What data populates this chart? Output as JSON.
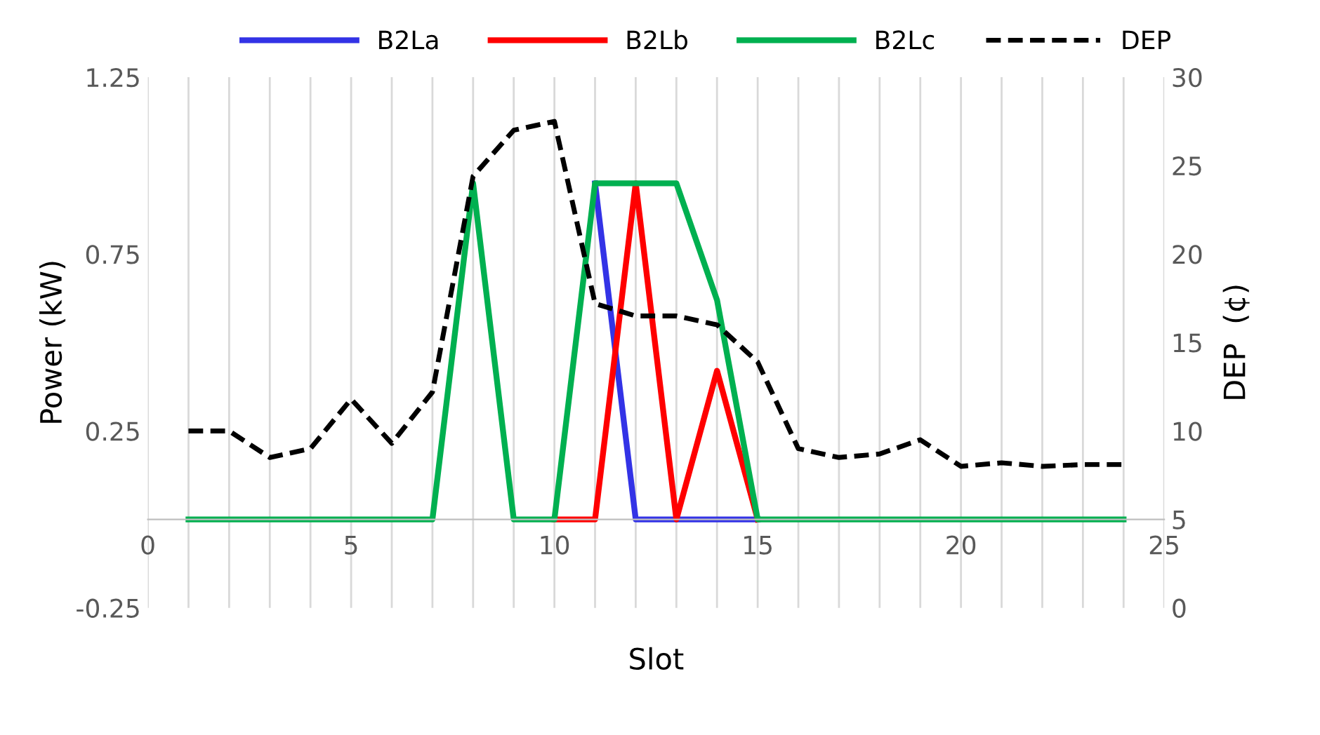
{
  "chart_data": {
    "type": "line",
    "xlabel": "Slot",
    "ylabel": "Power (kW)",
    "y2label": "DEP  (¢)",
    "x": [
      1,
      2,
      3,
      4,
      5,
      6,
      7,
      8,
      9,
      10,
      11,
      12,
      13,
      14,
      15,
      16,
      17,
      18,
      19,
      20,
      21,
      22,
      23,
      24
    ],
    "series": [
      {
        "name": "B2La",
        "color": "#3333e6",
        "values": [
          null,
          null,
          null,
          null,
          null,
          null,
          null,
          null,
          null,
          null,
          0.95,
          0,
          0,
          0,
          0,
          null,
          null,
          null,
          null,
          null,
          null,
          null,
          null,
          null
        ]
      },
      {
        "name": "B2Lb",
        "color": "#ff0000",
        "values": [
          null,
          null,
          null,
          null,
          null,
          null,
          null,
          null,
          null,
          0,
          0,
          0.95,
          0,
          0.42,
          0,
          null,
          null,
          null,
          null,
          null,
          null,
          null,
          null,
          null
        ]
      },
      {
        "name": "B2Lc",
        "color": "#00b050",
        "values": [
          0,
          0,
          0,
          0,
          0,
          0,
          0,
          0.95,
          0,
          0,
          0.95,
          0.95,
          0.95,
          0.62,
          0,
          0,
          0,
          0,
          0,
          0,
          0,
          0,
          0,
          0
        ]
      },
      {
        "name": "DEP",
        "color": "#000000",
        "axis": "y2",
        "line_style": "dashed",
        "values": [
          10.0,
          10.0,
          8.5,
          9.0,
          11.8,
          9.3,
          12.2,
          24.4,
          27.0,
          27.5,
          17.2,
          16.5,
          16.5,
          16.0,
          13.9,
          9.0,
          8.5,
          8.7,
          9.5,
          8.0,
          8.2,
          8.0,
          8.1,
          8.1
        ]
      }
    ],
    "xlim": [
      0,
      25
    ],
    "xticks": [
      0,
      {
        "value": 1,
        "label": null
      },
      {
        "value": 2,
        "label": null
      },
      {
        "value": 3,
        "label": null
      },
      {
        "value": 4,
        "label": null
      },
      5,
      {
        "value": 6,
        "label": null
      },
      {
        "value": 7,
        "label": null
      },
      {
        "value": 8,
        "label": null
      },
      {
        "value": 9,
        "label": null
      },
      10,
      {
        "value": 11,
        "label": null
      },
      {
        "value": 12,
        "label": null
      },
      {
        "value": 13,
        "label": null
      },
      {
        "value": 14,
        "label": null
      },
      15,
      {
        "value": 16,
        "label": null
      },
      {
        "value": 17,
        "label": null
      },
      {
        "value": 18,
        "label": null
      },
      {
        "value": 19,
        "label": null
      },
      20,
      {
        "value": 21,
        "label": null
      },
      {
        "value": 22,
        "label": null
      },
      {
        "value": 23,
        "label": null
      },
      {
        "value": 24,
        "label": null
      },
      25
    ],
    "ylim": [
      -0.25,
      1.25
    ],
    "yticks": [
      -0.25,
      0.25,
      0.75,
      1.25
    ],
    "y2lim": [
      0,
      30
    ],
    "y2ticks": [
      0,
      5,
      10,
      15,
      20,
      25,
      30
    ],
    "grid": "x",
    "legend": "top",
    "marker": "none"
  }
}
